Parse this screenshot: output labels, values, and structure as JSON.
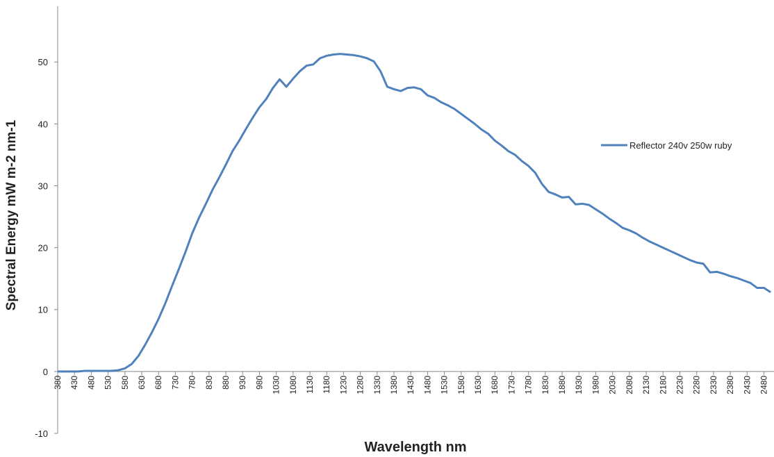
{
  "chart_data": {
    "type": "line",
    "x_label": "Wavelength nm",
    "y_label": "Spectral Energy mW m-2 nm-1",
    "x": [
      380,
      400,
      420,
      440,
      460,
      480,
      500,
      520,
      540,
      560,
      580,
      600,
      620,
      640,
      660,
      680,
      700,
      720,
      740,
      760,
      780,
      800,
      820,
      840,
      860,
      880,
      900,
      920,
      940,
      960,
      980,
      1000,
      1020,
      1040,
      1060,
      1080,
      1100,
      1120,
      1140,
      1160,
      1180,
      1200,
      1220,
      1240,
      1260,
      1280,
      1300,
      1320,
      1340,
      1360,
      1380,
      1400,
      1420,
      1440,
      1460,
      1480,
      1500,
      1520,
      1540,
      1560,
      1580,
      1600,
      1620,
      1640,
      1660,
      1680,
      1700,
      1720,
      1740,
      1760,
      1780,
      1800,
      1820,
      1840,
      1860,
      1880,
      1900,
      1920,
      1940,
      1960,
      1980,
      2000,
      2020,
      2040,
      2060,
      2080,
      2100,
      2120,
      2140,
      2160,
      2180,
      2200,
      2220,
      2240,
      2260,
      2280,
      2300,
      2320,
      2340,
      2360,
      2380,
      2400,
      2420,
      2440,
      2460,
      2480,
      2500
    ],
    "series": [
      {
        "name": "Reflector 240v 250w ruby",
        "color": "#4f81bd",
        "values": [
          0,
          0,
          0,
          0,
          0.1,
          0.1,
          0.1,
          0.1,
          0.1,
          0.2,
          0.5,
          1.2,
          2.5,
          4.3,
          6.3,
          8.5,
          11,
          13.8,
          16.5,
          19.3,
          22.3,
          24.8,
          27,
          29.3,
          31.3,
          33.4,
          35.6,
          37.3,
          39.2,
          41,
          42.7,
          44,
          45.8,
          47.2,
          46,
          47.3,
          48.5,
          49.4,
          49.6,
          50.6,
          51,
          51.2,
          51.3,
          51.2,
          51.1,
          50.9,
          50.6,
          50.1,
          48.5,
          46,
          45.6,
          45.3,
          45.8,
          45.9,
          45.6,
          44.6,
          44.2,
          43.5,
          43,
          42.4,
          41.6,
          40.8,
          40,
          39.1,
          38.4,
          37.3,
          36.5,
          35.6,
          35,
          34,
          33.2,
          32.1,
          30.3,
          29,
          28.6,
          28.1,
          28.2,
          27,
          27.1,
          26.9,
          26.2,
          25.5,
          24.7,
          24,
          23.2,
          22.8,
          22.3,
          21.6,
          21,
          20.5,
          20,
          19.5,
          19,
          18.5,
          18,
          17.6,
          17.4,
          16,
          16.1,
          15.8,
          15.4,
          15.1,
          14.7,
          14.3,
          13.5,
          13.5,
          12.8
        ]
      }
    ],
    "xlim": [
      380,
      2510
    ],
    "xticks": [
      380,
      430,
      480,
      530,
      580,
      630,
      680,
      730,
      780,
      830,
      880,
      930,
      980,
      1030,
      1080,
      1130,
      1180,
      1230,
      1280,
      1330,
      1380,
      1430,
      1480,
      1530,
      1580,
      1630,
      1680,
      1730,
      1780,
      1830,
      1880,
      1930,
      1980,
      2030,
      2080,
      2130,
      2180,
      2230,
      2280,
      2330,
      2380,
      2430,
      2480
    ],
    "ylim": [
      -10,
      59
    ],
    "yticks": [
      -10,
      0,
      10,
      20,
      30,
      40,
      50
    ],
    "grid": false,
    "legend": "right"
  }
}
